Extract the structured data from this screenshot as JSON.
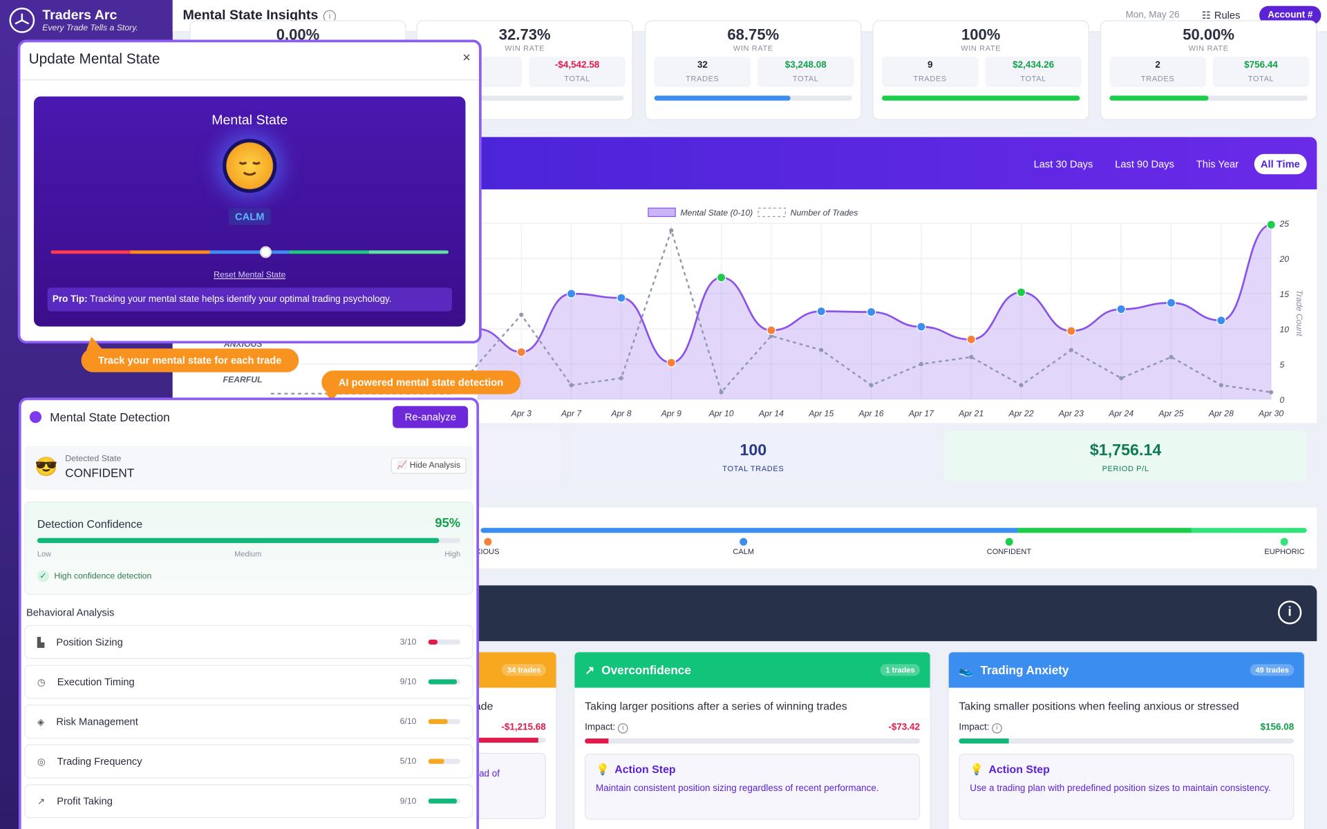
{
  "brand": {
    "name": "Traders Arc",
    "tagline": "Every Trade Tells a Story."
  },
  "header": {
    "title": "Mental State Insights",
    "date": "Mon, May 26",
    "rules": "Rules",
    "account": "Account #"
  },
  "stat_cards": [
    {
      "pct": "0.00%",
      "sub": "WIN RATE",
      "m1v": "",
      "m1l": "ES",
      "m2v": "",
      "m2l": "",
      "progress": 0.1
    },
    {
      "pct": "32.73%",
      "sub": "WIN RATE",
      "m1v": "",
      "m1l": "ES",
      "m2v": "-$4,542.58",
      "m2l": "TOTAL",
      "progress": 0.05
    },
    {
      "pct": "68.75%",
      "sub": "WIN RATE",
      "m1v": "32",
      "m1l": "TRADES",
      "m2v": "$3,248.08",
      "m2l": "TOTAL",
      "progress": 0.69
    },
    {
      "pct": "100%",
      "sub": "WIN RATE",
      "m1v": "9",
      "m1l": "TRADES",
      "m2v": "$2,434.26",
      "m2l": "TOTAL",
      "progress": 1.0
    },
    {
      "pct": "50.00%",
      "sub": "WIN RATE",
      "m1v": "2",
      "m1l": "TRADES",
      "m2v": "$756.44",
      "m2l": "TOTAL",
      "progress": 0.5
    }
  ],
  "ranges": [
    "Last 30 Days",
    "Last 90 Days",
    "This Year",
    "All Time"
  ],
  "chart_data": {
    "type": "line",
    "legend": [
      "Mental State (0-10)",
      "Number of Trades"
    ],
    "y2label": "Trade Count",
    "y2ticks": [
      "0",
      "5",
      "10",
      "15",
      "20",
      "25"
    ],
    "y2lim": [
      0,
      25
    ],
    "left_labels": [
      "ANXIOUS",
      "FEARFUL"
    ],
    "categories": [
      "Apr 3",
      "Apr 7",
      "Apr 8",
      "Apr 9",
      "Apr 10",
      "Apr 14",
      "Apr 15",
      "Apr 16",
      "Apr 17",
      "Apr 21",
      "Apr 22",
      "Apr 23",
      "Apr 24",
      "Apr 25",
      "Apr 28",
      "Apr 30"
    ],
    "series": [
      {
        "name": "Mental State (0-10)",
        "values": [
          6.7,
          15.0,
          14.4,
          5.2,
          17.3,
          9.8,
          12.5,
          12.4,
          10.3,
          8.5,
          15.2,
          9.7,
          12.8,
          13.7,
          11.2,
          24.8
        ]
      },
      {
        "name": "Number of Trades",
        "values": [
          12,
          2,
          3,
          24,
          1,
          9,
          7,
          2,
          5,
          6,
          2,
          7,
          3,
          6,
          2,
          1
        ]
      }
    ],
    "grid": true
  },
  "summary": [
    {
      "value": "100",
      "label": "TOTAL TRADES"
    },
    {
      "value": "$1,756.14",
      "label": "PERIOD P/L"
    }
  ],
  "scale_labels": [
    "XIOUS",
    "CALM",
    "CONFIDENT",
    "EUPHORIC"
  ],
  "patterns": [
    {
      "title": "",
      "badge": "34 trades",
      "desc": "trade",
      "impact_label": "",
      "impact": "-$1,215.68",
      "action_title": "",
      "action": "ad of",
      "color": "#f7a81e",
      "fill": 0.9
    },
    {
      "title": "Overconfidence",
      "badge": "1 trades",
      "desc": "Taking larger positions after a series of winning trades",
      "impact_label": "Impact:",
      "impact": "-$73.42",
      "action_title": "Action Step",
      "action": "Maintain consistent position sizing regardless of recent performance.",
      "color": "#12c47a",
      "fill": 0.07
    },
    {
      "title": "Trading Anxiety",
      "badge": "49 trades",
      "desc": "Taking smaller positions when feeling anxious or stressed",
      "impact_label": "Impact:",
      "impact": "$156.08",
      "action_title": "Action Step",
      "action": "Use a trading plan with predefined position sizes to maintain consistency.",
      "color": "#3b8ef0",
      "fill": 0.15
    }
  ],
  "modal": {
    "title": "Update Mental State",
    "close": "×",
    "heading": "Mental State",
    "state": "CALM",
    "reset": "Reset Mental State",
    "tip_bold": "Pro Tip:",
    "tip": " Tracking your mental state helps identify your optimal trading psychology.",
    "slider_value": 0.54
  },
  "callouts": [
    "Track your mental state for each trade",
    "AI powered mental state detection"
  ],
  "detection": {
    "title": "Mental State Detection",
    "reanalyze": "Re-analyze",
    "detected_label": "Detected State",
    "detected_value": "CONFIDENT",
    "hide": "Hide Analysis",
    "conf_label": "Detection Confidence",
    "conf_value": "95%",
    "conf_fraction": 0.95,
    "scale": [
      "Low",
      "Medium",
      "High"
    ],
    "conf_note": "High confidence detection",
    "behavior_title": "Behavioral Analysis",
    "behaviors": [
      {
        "label": "Position Sizing",
        "score": "3/10",
        "fraction": 0.3,
        "color": "#e21a4a"
      },
      {
        "label": "Execution Timing",
        "score": "9/10",
        "fraction": 0.9,
        "color": "#12b87a"
      },
      {
        "label": "Risk Management",
        "score": "6/10",
        "fraction": 0.6,
        "color": "#f7a81e"
      },
      {
        "label": "Trading Frequency",
        "score": "5/10",
        "fraction": 0.5,
        "color": "#f7a81e"
      },
      {
        "label": "Profit Taking",
        "score": "9/10",
        "fraction": 0.9,
        "color": "#12b87a"
      }
    ]
  }
}
